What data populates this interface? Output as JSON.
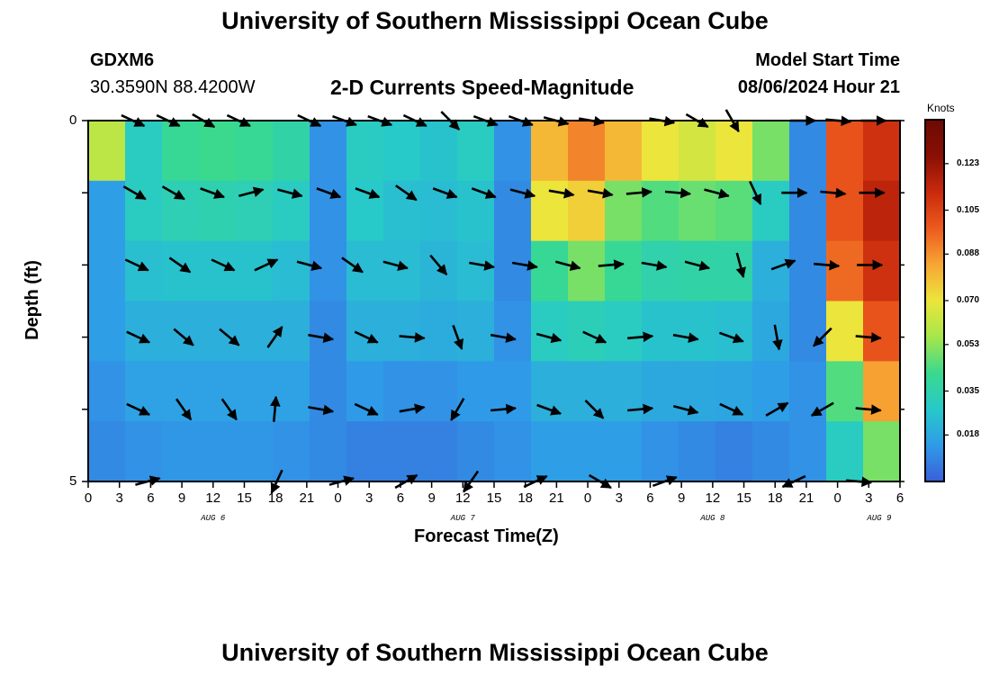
{
  "page": {
    "title": "University of Southern Mississippi Ocean Cube",
    "footer_title": "University of Southern Mississippi Ocean Cube"
  },
  "header": {
    "station": "GDXM6",
    "coords": "30.3590N  88.4200W",
    "plot_title": "2-D Currents Speed-Magnitude",
    "model_label": "Model Start Time",
    "model_time": "08/06/2024 Hour 21"
  },
  "chart_data": {
    "type": "heatmap",
    "title": "2-D Currents Speed-Magnitude",
    "xlabel": "Forecast Time(Z)",
    "ylabel": "Depth (ft)",
    "x_tick_labels": [
      "0",
      "3",
      "6",
      "9",
      "12",
      "15",
      "18",
      "21",
      "0",
      "3",
      "6",
      "9",
      "12",
      "15",
      "18",
      "21",
      "0",
      "3",
      "6",
      "9",
      "12",
      "15",
      "18",
      "21",
      "0",
      "3",
      "6"
    ],
    "x_date_labels": [
      {
        "label": "AUG 6",
        "hour_index": 12
      },
      {
        "label": "AUG 7",
        "hour_index": 36
      },
      {
        "label": "AUG 8",
        "hour_index": 60
      },
      {
        "label": "AUG 9",
        "hour_index": 76
      }
    ],
    "x_range_hours": [
      0,
      78
    ],
    "y_tick_labels": [
      "0",
      "5"
    ],
    "y_range": [
      0,
      5
    ],
    "colorbar": {
      "label": "Knots",
      "tick_labels": [
        "0.123",
        "0.105",
        "0.088",
        "0.070",
        "0.053",
        "0.035",
        "0.018"
      ],
      "range": [
        0,
        0.14
      ],
      "colors": [
        "#3a5fd8",
        "#2f9be8",
        "#27c9c9",
        "#3ad98e",
        "#a7e64a",
        "#ece53b",
        "#f7a634",
        "#ec5a1e",
        "#c92a0c",
        "#8a0f05",
        "#6b0a04"
      ]
    },
    "speed_rows_knots": [
      [
        0.06,
        0.03,
        0.04,
        0.042,
        0.04,
        0.036,
        0.012,
        0.03,
        0.028,
        0.026,
        0.03,
        0.012,
        0.08,
        0.09,
        0.08,
        0.07,
        0.065,
        0.07,
        0.05,
        0.01,
        0.1,
        0.11
      ],
      [
        0.015,
        0.03,
        0.033,
        0.034,
        0.033,
        0.03,
        0.012,
        0.028,
        0.025,
        0.024,
        0.026,
        0.01,
        0.07,
        0.075,
        0.05,
        0.045,
        0.048,
        0.046,
        0.03,
        0.01,
        0.1,
        0.115
      ],
      [
        0.015,
        0.025,
        0.026,
        0.026,
        0.026,
        0.024,
        0.012,
        0.024,
        0.024,
        0.022,
        0.024,
        0.01,
        0.04,
        0.05,
        0.04,
        0.035,
        0.036,
        0.036,
        0.02,
        0.01,
        0.095,
        0.11
      ],
      [
        0.015,
        0.02,
        0.02,
        0.02,
        0.02,
        0.02,
        0.01,
        0.02,
        0.02,
        0.019,
        0.02,
        0.012,
        0.03,
        0.032,
        0.03,
        0.026,
        0.026,
        0.025,
        0.018,
        0.01,
        0.07,
        0.1
      ],
      [
        0.012,
        0.016,
        0.016,
        0.016,
        0.016,
        0.016,
        0.01,
        0.014,
        0.012,
        0.012,
        0.014,
        0.014,
        0.02,
        0.02,
        0.02,
        0.018,
        0.018,
        0.017,
        0.015,
        0.012,
        0.045,
        0.085
      ],
      [
        0.01,
        0.012,
        0.013,
        0.013,
        0.013,
        0.012,
        0.01,
        0.008,
        0.008,
        0.008,
        0.01,
        0.012,
        0.015,
        0.015,
        0.015,
        0.012,
        0.01,
        0.008,
        0.01,
        0.012,
        0.03,
        0.05
      ]
    ],
    "vector_hours": [
      0,
      6,
      9,
      12,
      15,
      18,
      21,
      24,
      27,
      30,
      33,
      36,
      39,
      42,
      45,
      48,
      51,
      54,
      57,
      60,
      63,
      66,
      69,
      72,
      75,
      78
    ],
    "vector_depth_rows": [
      0,
      1,
      2,
      3,
      4,
      5
    ],
    "vectors_deg": [
      [
        -25,
        -25,
        -30,
        -25,
        null,
        -25,
        -20,
        -20,
        -25,
        -45,
        -20,
        -20,
        -15,
        -10,
        null,
        -10,
        -30,
        -60,
        null,
        0,
        -5,
        0
      ],
      [
        -30,
        -30,
        -20,
        15,
        -15,
        -20,
        -20,
        -35,
        -20,
        -20,
        -15,
        -10,
        -10,
        5,
        -5,
        -15,
        -65,
        0,
        -5,
        0
      ],
      [
        -25,
        -35,
        -25,
        25,
        -15,
        -35,
        -15,
        -50,
        -10,
        -10,
        -15,
        5,
        -10,
        -15,
        -75,
        20,
        -5,
        0
      ],
      [
        -25,
        -40,
        -40,
        55,
        -10,
        -25,
        -5,
        -70,
        -10,
        -15,
        -25,
        5,
        -10,
        -20,
        -80,
        -135,
        -5
      ],
      [
        -25,
        -55,
        -55,
        85,
        -10,
        -25,
        10,
        -120,
        5,
        -20,
        -45,
        5,
        -15,
        -25,
        30,
        -150,
        -5
      ],
      [
        15,
        null,
        -115,
        15,
        30,
        -125,
        25,
        -30,
        20,
        null,
        -155,
        -5
      ]
    ]
  }
}
